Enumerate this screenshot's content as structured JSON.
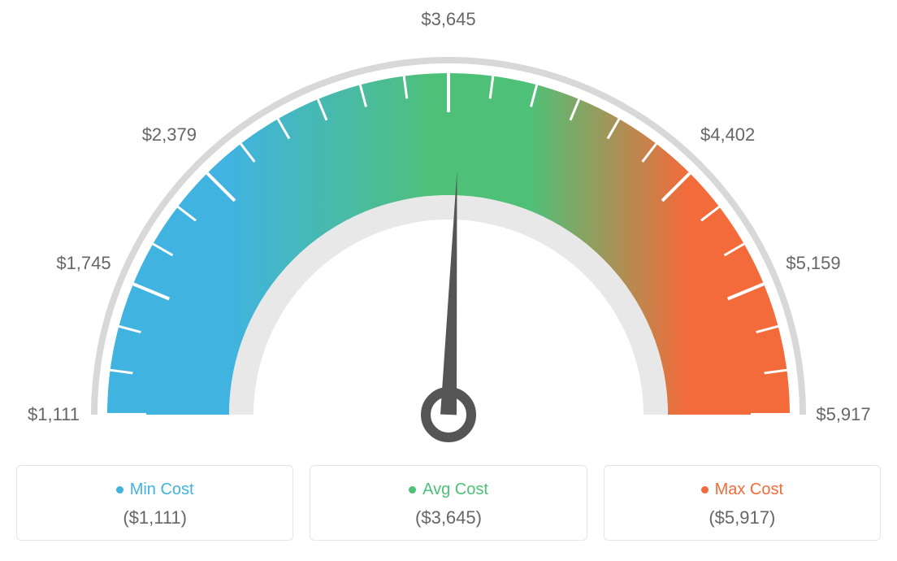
{
  "gauge": {
    "type": "gauge",
    "tick_labels": [
      "$1,111",
      "$1,745",
      "$2,379",
      "$3,645",
      "$4,402",
      "$5,159",
      "$5,917"
    ],
    "tick_angles_deg": [
      -90,
      -67.5,
      -45,
      0,
      45,
      67.5,
      90
    ],
    "minor_tick_count": 25,
    "colors": {
      "min": "#40b3e0",
      "avg": "#4fc078",
      "max": "#f36b3b",
      "outer_arc": "#d8d8d8",
      "inner_arc": "#e8e8e8",
      "needle": "#555555",
      "tick_white": "#ffffff",
      "label": "#666666",
      "card_border": "#e5e5e5",
      "background": "#ffffff"
    },
    "label_fontsize": 22,
    "card_title_fontsize": 20,
    "card_value_fontsize": 22,
    "outer_thin_r_outer": 440,
    "outer_thin_r_inner": 432,
    "main_r_outer": 420,
    "main_r_inner": 270,
    "inner_thin_r_outer": 270,
    "inner_thin_r_inner": 240,
    "needle_angle_deg": 2,
    "needle_length": 300,
    "needle_width": 20,
    "pivot_outer_r": 28,
    "pivot_inner_r": 16
  },
  "cards": {
    "min": {
      "label": "Min Cost",
      "value": "($1,111)"
    },
    "avg": {
      "label": "Avg Cost",
      "value": "($3,645)"
    },
    "max": {
      "label": "Max Cost",
      "value": "($5,917)"
    }
  }
}
